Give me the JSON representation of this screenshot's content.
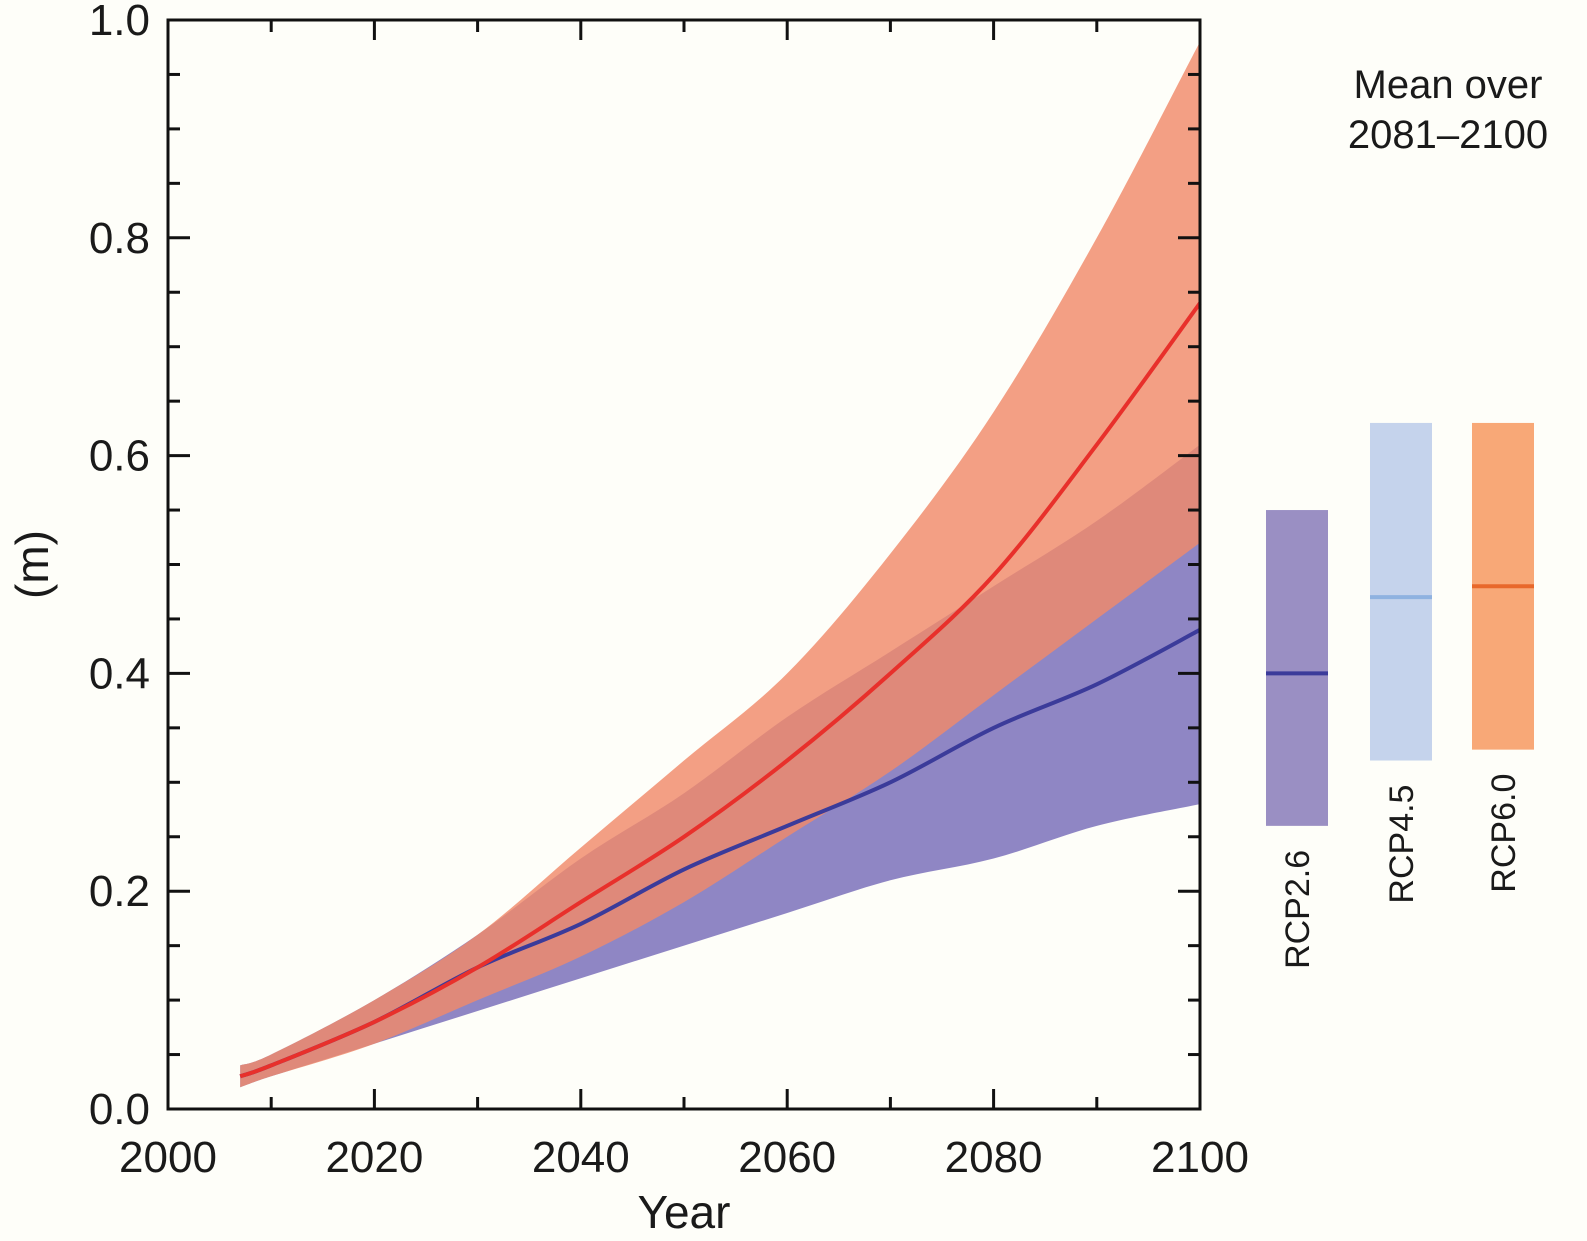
{
  "chart_data": {
    "type": "area",
    "title": "",
    "xlabel": "Year",
    "ylabel": "(m)",
    "xlim": [
      2000,
      2100
    ],
    "ylim": [
      0,
      1.0
    ],
    "xticks": [
      2000,
      2020,
      2040,
      2060,
      2080,
      2100
    ],
    "yticks": [
      0.0,
      0.2,
      0.4,
      0.6,
      0.8,
      1.0
    ],
    "ytick_labels": [
      "0.0",
      "0.2",
      "0.4",
      "0.6",
      "0.8",
      "1.0"
    ],
    "grid": false,
    "x": [
      2007,
      2010,
      2020,
      2030,
      2040,
      2050,
      2060,
      2070,
      2080,
      2090,
      2100
    ],
    "series": [
      {
        "color": "#3b3b9a",
        "band_color": "#8f86c4",
        "mean": [
          0.03,
          0.04,
          0.08,
          0.13,
          0.17,
          0.22,
          0.26,
          0.3,
          0.35,
          0.39,
          0.44
        ],
        "lower": [
          0.02,
          0.03,
          0.06,
          0.09,
          0.12,
          0.15,
          0.18,
          0.21,
          0.23,
          0.26,
          0.28
        ],
        "upper": [
          0.04,
          0.05,
          0.1,
          0.16,
          0.23,
          0.29,
          0.36,
          0.42,
          0.48,
          0.54,
          0.61
        ]
      },
      {
        "color": "#e8302b",
        "band_color": "#f08a6a",
        "mean": [
          0.03,
          0.04,
          0.08,
          0.13,
          0.19,
          0.25,
          0.32,
          0.4,
          0.49,
          0.61,
          0.74
        ],
        "lower": [
          0.02,
          0.03,
          0.06,
          0.1,
          0.14,
          0.19,
          0.25,
          0.31,
          0.38,
          0.45,
          0.52
        ],
        "upper": [
          0.04,
          0.05,
          0.1,
          0.16,
          0.24,
          0.32,
          0.4,
          0.51,
          0.64,
          0.8,
          0.98
        ]
      }
    ],
    "side_panel": {
      "title_line1": "Mean over",
      "title_line2": "2081–2100",
      "bars": [
        {
          "label": "RCP2.6",
          "low": 0.26,
          "high": 0.55,
          "mean": 0.4,
          "fill": "#9a8fc3",
          "line": "#3b3b9a"
        },
        {
          "label": "RCP4.5",
          "low": 0.32,
          "high": 0.63,
          "mean": 0.47,
          "fill": "#c5d3ec",
          "line": "#8fb2e0"
        },
        {
          "label": "RCP6.0",
          "low": 0.33,
          "high": 0.63,
          "mean": 0.48,
          "fill": "#f8a877",
          "line": "#e8682b"
        }
      ]
    }
  }
}
